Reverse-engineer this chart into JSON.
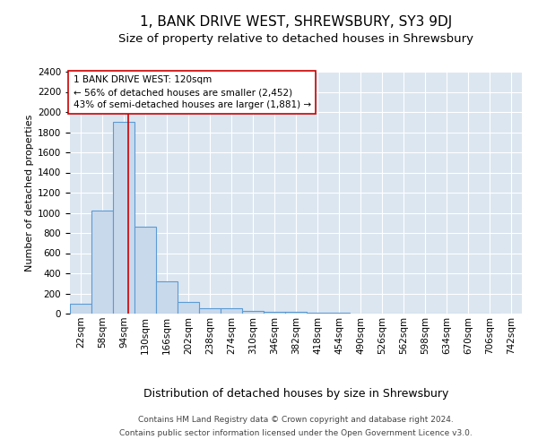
{
  "title": "1, BANK DRIVE WEST, SHREWSBURY, SY3 9DJ",
  "subtitle": "Size of property relative to detached houses in Shrewsbury",
  "xlabel": "Distribution of detached houses by size in Shrewsbury",
  "ylabel": "Number of detached properties",
  "footnote1": "Contains HM Land Registry data © Crown copyright and database right 2024.",
  "footnote2": "Contains public sector information licensed under the Open Government Licence v3.0.",
  "annotation_line1": "1 BANK DRIVE WEST: 120sqm",
  "annotation_line2": "← 56% of detached houses are smaller (2,452)",
  "annotation_line3": "43% of semi-detached houses are larger (1,881) →",
  "bar_edges": [
    22,
    58,
    94,
    130,
    166,
    202,
    238,
    274,
    310,
    346,
    382,
    418,
    454,
    490,
    526,
    562,
    598,
    634,
    670,
    706,
    742
  ],
  "bar_heights": [
    100,
    1020,
    1900,
    860,
    320,
    120,
    55,
    50,
    30,
    20,
    20,
    5,
    5,
    2,
    2,
    1,
    1,
    1,
    1,
    1
  ],
  "bar_color": "#c9d9ec",
  "bar_edge_color": "#5b9bd5",
  "bar_linewidth": 0.8,
  "red_line_x": 120,
  "red_line_color": "#cc0000",
  "ylim": [
    0,
    2400
  ],
  "yticks": [
    0,
    200,
    400,
    600,
    800,
    1000,
    1200,
    1400,
    1600,
    1800,
    2000,
    2200,
    2400
  ],
  "bg_color": "#dce6f1",
  "grid_color": "#ffffff",
  "title_fontsize": 11,
  "subtitle_fontsize": 9.5,
  "ylabel_fontsize": 8,
  "xlabel_fontsize": 9,
  "tick_fontsize": 7.5,
  "annotation_fontsize": 7.5,
  "footnote_fontsize": 6.5
}
